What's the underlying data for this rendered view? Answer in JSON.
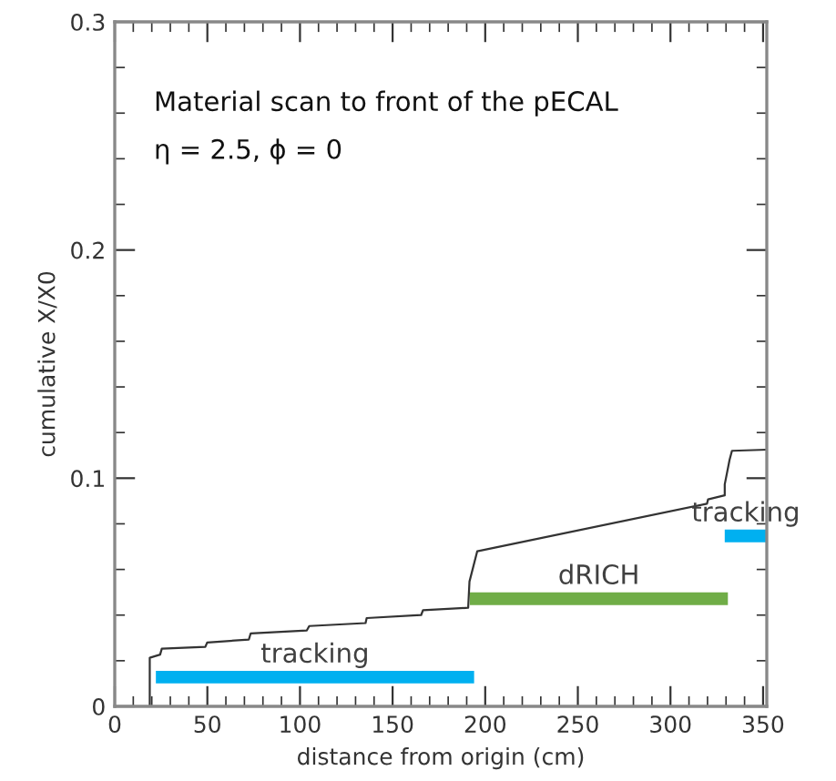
{
  "chart_data": {
    "type": "line",
    "xlabel": "distance from origin (cm)",
    "ylabel": "cumulative X/X0",
    "annotations": [
      "Material scan to front of the pECAL",
      "η = 2.5, ϕ = 0"
    ],
    "xlim": [
      0,
      352
    ],
    "xticks": [
      0,
      50,
      100,
      150,
      200,
      250,
      300,
      350
    ],
    "ylim": [
      0,
      0.3
    ],
    "yticks": [
      0,
      0.1,
      0.2,
      0.3
    ],
    "grid": false,
    "legend": false,
    "marker": "none",
    "line_style": "solid",
    "series": [
      {
        "color": "#333333",
        "x": [
          0,
          18.9,
          18.9,
          24.5,
          25.4,
          48.9,
          49.9,
          72.4,
          73.4,
          103.7,
          105,
          135.4,
          136,
          165.4,
          166.4,
          190.8,
          191.5,
          195.7,
          319.7,
          320.3,
          329.3,
          329.3,
          331.9,
          333.2,
          352
        ],
        "values": [
          0,
          0,
          0.0213,
          0.0227,
          0.0253,
          0.0261,
          0.028,
          0.0293,
          0.032,
          0.0333,
          0.0352,
          0.0365,
          0.0387,
          0.04,
          0.0421,
          0.0432,
          0.0547,
          0.068,
          0.0888,
          0.0907,
          0.0925,
          0.0973,
          0.108,
          0.112,
          0.1125
        ]
      },
      {
        "name": "tracking",
        "color": "#00b0f0",
        "x": [
          22.2,
          194
        ],
        "values": [
          0.0128,
          0.0128
        ]
      },
      {
        "name": "dRICH",
        "color": "#70ad47",
        "x": [
          191.7,
          331
        ],
        "values": [
          0.0472,
          0.0472
        ]
      },
      {
        "name": "tracking",
        "color": "#00b0f0",
        "x": [
          329.3,
          352
        ],
        "values": [
          0.0747,
          0.0747
        ]
      }
    ]
  }
}
